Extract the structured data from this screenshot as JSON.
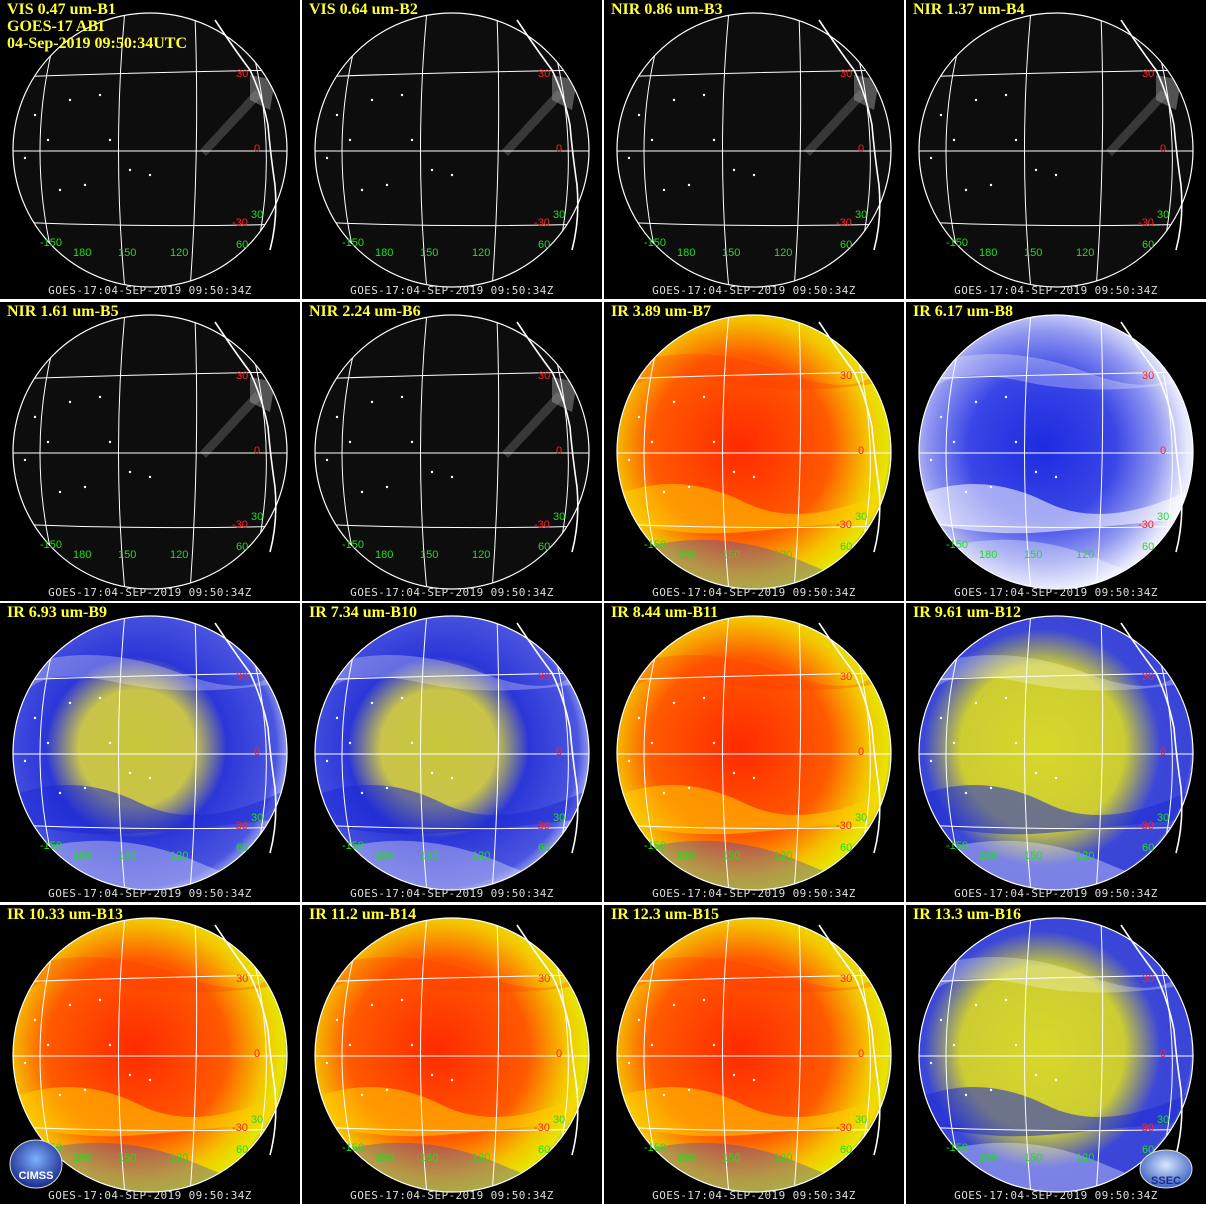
{
  "header": {
    "satellite": "GOES-17 ABI",
    "timestamp": "04-Sep-2019 09:50:34UTC"
  },
  "footer_label": "GOES-17:04-SEP-2019 09:50:34Z",
  "lat_labels": [
    "30",
    "0",
    "-30",
    "30"
  ],
  "lon_labels": [
    "-150",
    "180",
    "150",
    "120",
    "60"
  ],
  "colors": {
    "title": "#ffff33",
    "lat_label": "#ff2222",
    "lon_label": "#22dd22",
    "grid": "#ffffff"
  },
  "panels": [
    {
      "title": "VIS 0.47 um-B1",
      "style": "vis"
    },
    {
      "title": "VIS 0.64 um-B2",
      "style": "vis"
    },
    {
      "title": "NIR 0.86 um-B3",
      "style": "vis"
    },
    {
      "title": "NIR 1.37 um-B4",
      "style": "vis"
    },
    {
      "title": "NIR 1.61 um-B5",
      "style": "vis"
    },
    {
      "title": "NIR 2.24 um-B6",
      "style": "vis"
    },
    {
      "title": "IR 3.89 um-B7",
      "style": "ir-red"
    },
    {
      "title": "IR 6.17 um-B8",
      "style": "wv-white"
    },
    {
      "title": "IR 6.93 um-B9",
      "style": "wv-blue"
    },
    {
      "title": "IR 7.34 um-B10",
      "style": "wv-blue"
    },
    {
      "title": "IR 8.44 um-B11",
      "style": "ir-red"
    },
    {
      "title": "IR 9.61 um-B12",
      "style": "ir-yellow"
    },
    {
      "title": "IR 10.33 um-B13",
      "style": "ir-red"
    },
    {
      "title": "IR 11.2 um-B14",
      "style": "ir-red"
    },
    {
      "title": "IR 12.3 um-B15",
      "style": "ir-red"
    },
    {
      "title": "IR 13.3 um-B16",
      "style": "ir-yellow"
    }
  ],
  "logos": {
    "left": "CIMSS",
    "right": "SSEC"
  }
}
